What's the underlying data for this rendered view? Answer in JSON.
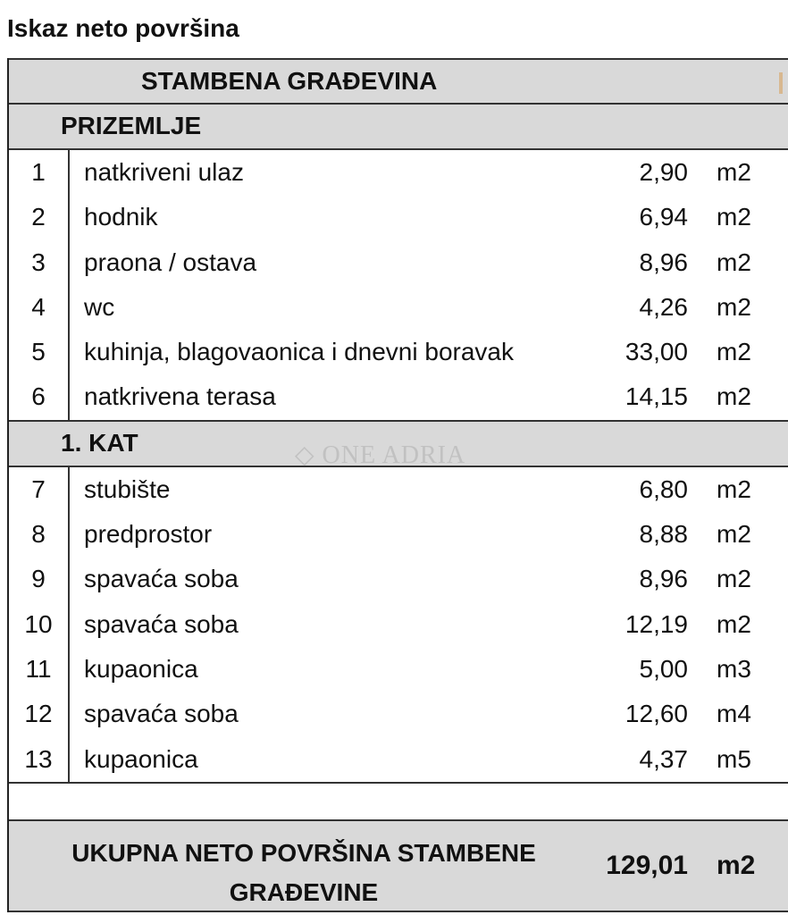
{
  "title": "Iskaz neto površina",
  "header": "STAMBENA GRAĐEVINA",
  "sections": [
    {
      "label": "PRIZEMLJE",
      "rows": [
        {
          "n": "1",
          "name": "natkriveni ulaz",
          "value": "2,90",
          "unit": "m2"
        },
        {
          "n": "2",
          "name": "hodnik",
          "value": "6,94",
          "unit": "m2"
        },
        {
          "n": "3",
          "name": "praona / ostava",
          "value": "8,96",
          "unit": "m2"
        },
        {
          "n": "4",
          "name": "wc",
          "value": "4,26",
          "unit": "m2"
        },
        {
          "n": "5",
          "name": "kuhinja, blagovaonica i dnevni boravak",
          "value": "33,00",
          "unit": "m2"
        },
        {
          "n": "6",
          "name": "natkrivena terasa",
          "value": "14,15",
          "unit": "m2"
        }
      ]
    },
    {
      "label": "1. KAT",
      "rows": [
        {
          "n": "7",
          "name": "stubište",
          "value": "6,80",
          "unit": "m2"
        },
        {
          "n": "8",
          "name": "predprostor",
          "value": "8,88",
          "unit": "m2"
        },
        {
          "n": "9",
          "name": "spavaća soba",
          "value": "8,96",
          "unit": "m2"
        },
        {
          "n": "10",
          "name": "spavaća soba",
          "value": "12,19",
          "unit": "m2"
        },
        {
          "n": "11",
          "name": "kupaonica",
          "value": "5,00",
          "unit": "m3"
        },
        {
          "n": "12",
          "name": "spavaća soba",
          "value": "12,60",
          "unit": "m4"
        },
        {
          "n": "13",
          "name": "kupaonica",
          "value": "4,37",
          "unit": "m5"
        }
      ]
    }
  ],
  "total": {
    "label_line1": "UKUPNA NETO POVRŠINA STAMBENE",
    "label_line2": "GRAĐEVINE",
    "value": "129,01",
    "unit": "m2"
  },
  "watermark": "◇ ONE ADRIA"
}
